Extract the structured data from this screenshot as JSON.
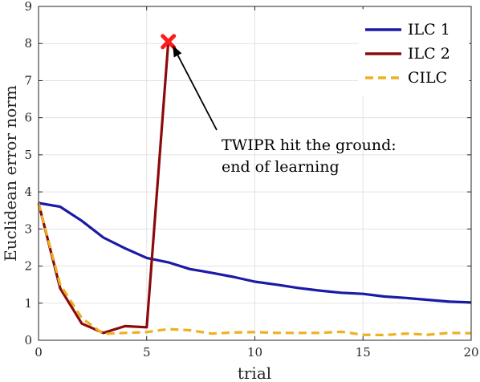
{
  "chart_data": {
    "type": "line",
    "title": "",
    "xlabel": "trial",
    "ylabel": "Euclidean error norm",
    "xlim": [
      0,
      20
    ],
    "ylim": [
      0,
      9
    ],
    "xticks": [
      0,
      5,
      10,
      15,
      20
    ],
    "yticks": [
      0,
      1,
      2,
      3,
      4,
      5,
      6,
      7,
      8,
      9
    ],
    "xtick_labels": [
      "0",
      "5",
      "10",
      "15",
      "20"
    ],
    "ytick_labels": [
      "0",
      "1",
      "2",
      "3",
      "4",
      "5",
      "6",
      "7",
      "8",
      "9"
    ],
    "grid": true,
    "legend_position": "top-right",
    "series": [
      {
        "name": "ILC 1",
        "color": "#1a1aa6",
        "style": "solid",
        "x": [
          0,
          1,
          2,
          3,
          4,
          5,
          6,
          7,
          8,
          9,
          10,
          11,
          12,
          13,
          14,
          15,
          16,
          17,
          18,
          19,
          20
        ],
        "y": [
          3.7,
          3.6,
          3.22,
          2.77,
          2.48,
          2.22,
          2.1,
          1.92,
          1.82,
          1.71,
          1.58,
          1.5,
          1.41,
          1.34,
          1.28,
          1.25,
          1.18,
          1.14,
          1.09,
          1.04,
          1.02
        ]
      },
      {
        "name": "ILC 2",
        "color": "#8b0a0a",
        "style": "solid",
        "x": [
          0,
          1,
          2,
          3,
          4,
          5,
          6
        ],
        "y": [
          3.7,
          1.4,
          0.45,
          0.2,
          0.38,
          0.35,
          8.05
        ]
      },
      {
        "name": "CILC",
        "color": "#edb120",
        "style": "dashed",
        "x": [
          0,
          1,
          2,
          3,
          4,
          5,
          6,
          7,
          8,
          9,
          10,
          11,
          12,
          13,
          14,
          15,
          16,
          17,
          18,
          19,
          20
        ],
        "y": [
          3.7,
          1.5,
          0.6,
          0.17,
          0.2,
          0.22,
          0.3,
          0.27,
          0.18,
          0.21,
          0.22,
          0.2,
          0.2,
          0.2,
          0.23,
          0.15,
          0.14,
          0.18,
          0.15,
          0.2,
          0.19
        ]
      }
    ],
    "marker": {
      "x": 6,
      "y": 8.05,
      "color": "#ff1a1a",
      "shape": "x"
    },
    "annotation": {
      "lines": [
        "TWIPR hit the ground:",
        "end of learning"
      ],
      "arrow_to": {
        "x": 6.2,
        "y": 7.95
      }
    }
  }
}
